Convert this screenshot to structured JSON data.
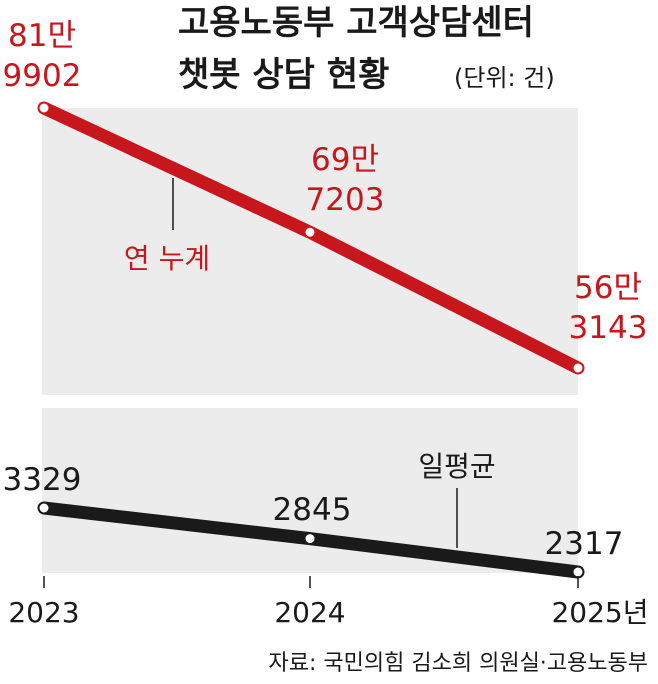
{
  "chart_data": {
    "type": "line",
    "title": "고용노동부 고객상담센터",
    "subtitle": "챗봇 상담 현황",
    "unit": "(단위: 건)",
    "categories": [
      "2023",
      "2024",
      "2025년"
    ],
    "series": [
      {
        "name": "연 누계",
        "values": [
          819902,
          697203,
          563143
        ],
        "value_labels": [
          [
            "81만",
            "9902"
          ],
          [
            "69만",
            "7203"
          ],
          [
            "56만",
            "3143"
          ]
        ],
        "color": "#c8161d"
      },
      {
        "name": "일평균",
        "values": [
          3329,
          2845,
          2317
        ],
        "value_labels": [
          "3329",
          "2845",
          "2317"
        ],
        "color": "#1a1a1a"
      }
    ],
    "source": "자료: 국민의힘 김소희 의원실·고용노동부"
  }
}
